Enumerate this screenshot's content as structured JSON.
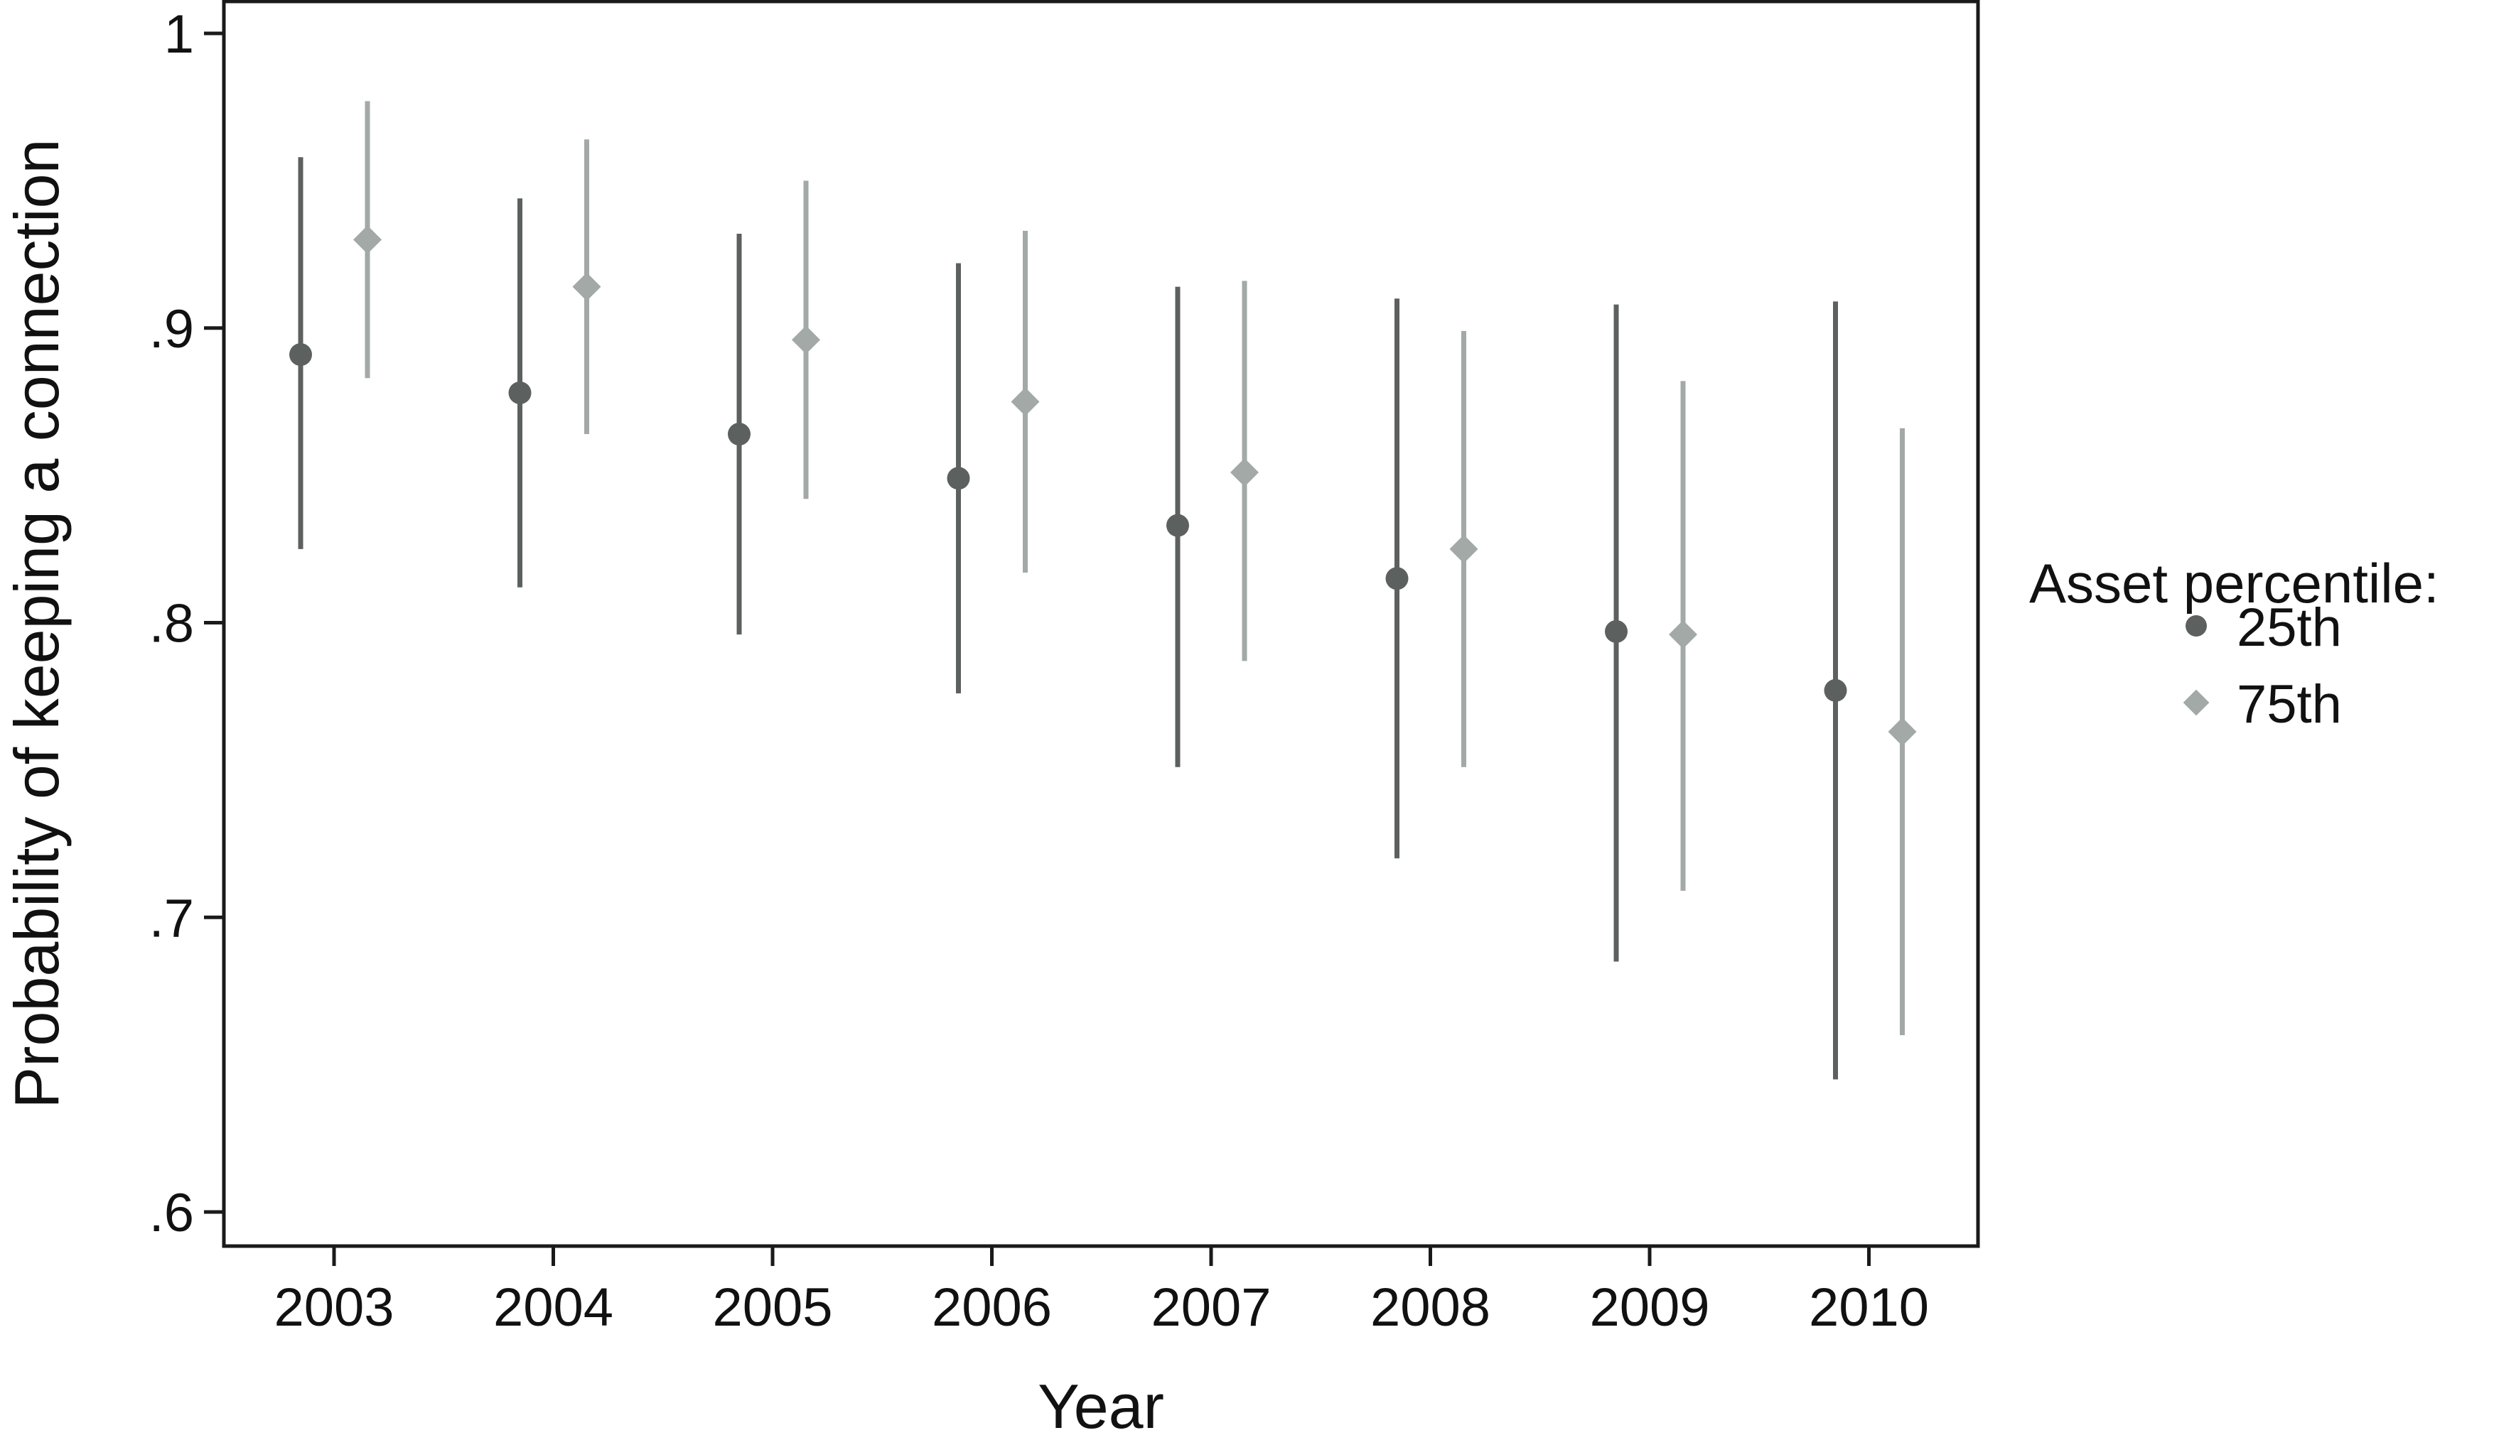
{
  "chart_data": {
    "type": "scatter",
    "error_bars": true,
    "x": [
      2003,
      2004,
      2005,
      2006,
      2007,
      2008,
      2009,
      2010
    ],
    "xlabel": "Year",
    "ylabel": "Probability of keeping a connection",
    "ylim": [
      0.6,
      1.0
    ],
    "yticks": [
      0.6,
      0.7,
      0.8,
      0.9,
      1.0
    ],
    "ytick_labels": [
      ".6",
      ".7",
      ".8",
      ".9",
      "1"
    ],
    "xtick_labels": [
      "2003",
      "2004",
      "2005",
      "2006",
      "2007",
      "2008",
      "2009",
      "2010"
    ],
    "grid": false,
    "legend": {
      "title": "Asset percentile:",
      "placement": "right",
      "entries": [
        "25th",
        "75th"
      ]
    },
    "series": [
      {
        "name": "25th",
        "marker": "circle",
        "color": "#5c605f",
        "values": [
          0.891,
          0.878,
          0.864,
          0.849,
          0.833,
          0.815,
          0.797,
          0.777
        ],
        "lower": [
          0.825,
          0.812,
          0.796,
          0.776,
          0.751,
          0.72,
          0.685,
          0.645
        ],
        "upper": [
          0.958,
          0.944,
          0.932,
          0.922,
          0.914,
          0.91,
          0.908,
          0.909
        ]
      },
      {
        "name": "75th",
        "marker": "diamond",
        "color": "#a2a9a6",
        "values": [
          0.93,
          0.914,
          0.896,
          0.875,
          0.851,
          0.825,
          0.796,
          0.763
        ],
        "lower": [
          0.883,
          0.864,
          0.842,
          0.817,
          0.787,
          0.751,
          0.709,
          0.66
        ],
        "upper": [
          0.977,
          0.964,
          0.95,
          0.933,
          0.916,
          0.899,
          0.882,
          0.866
        ]
      }
    ]
  }
}
